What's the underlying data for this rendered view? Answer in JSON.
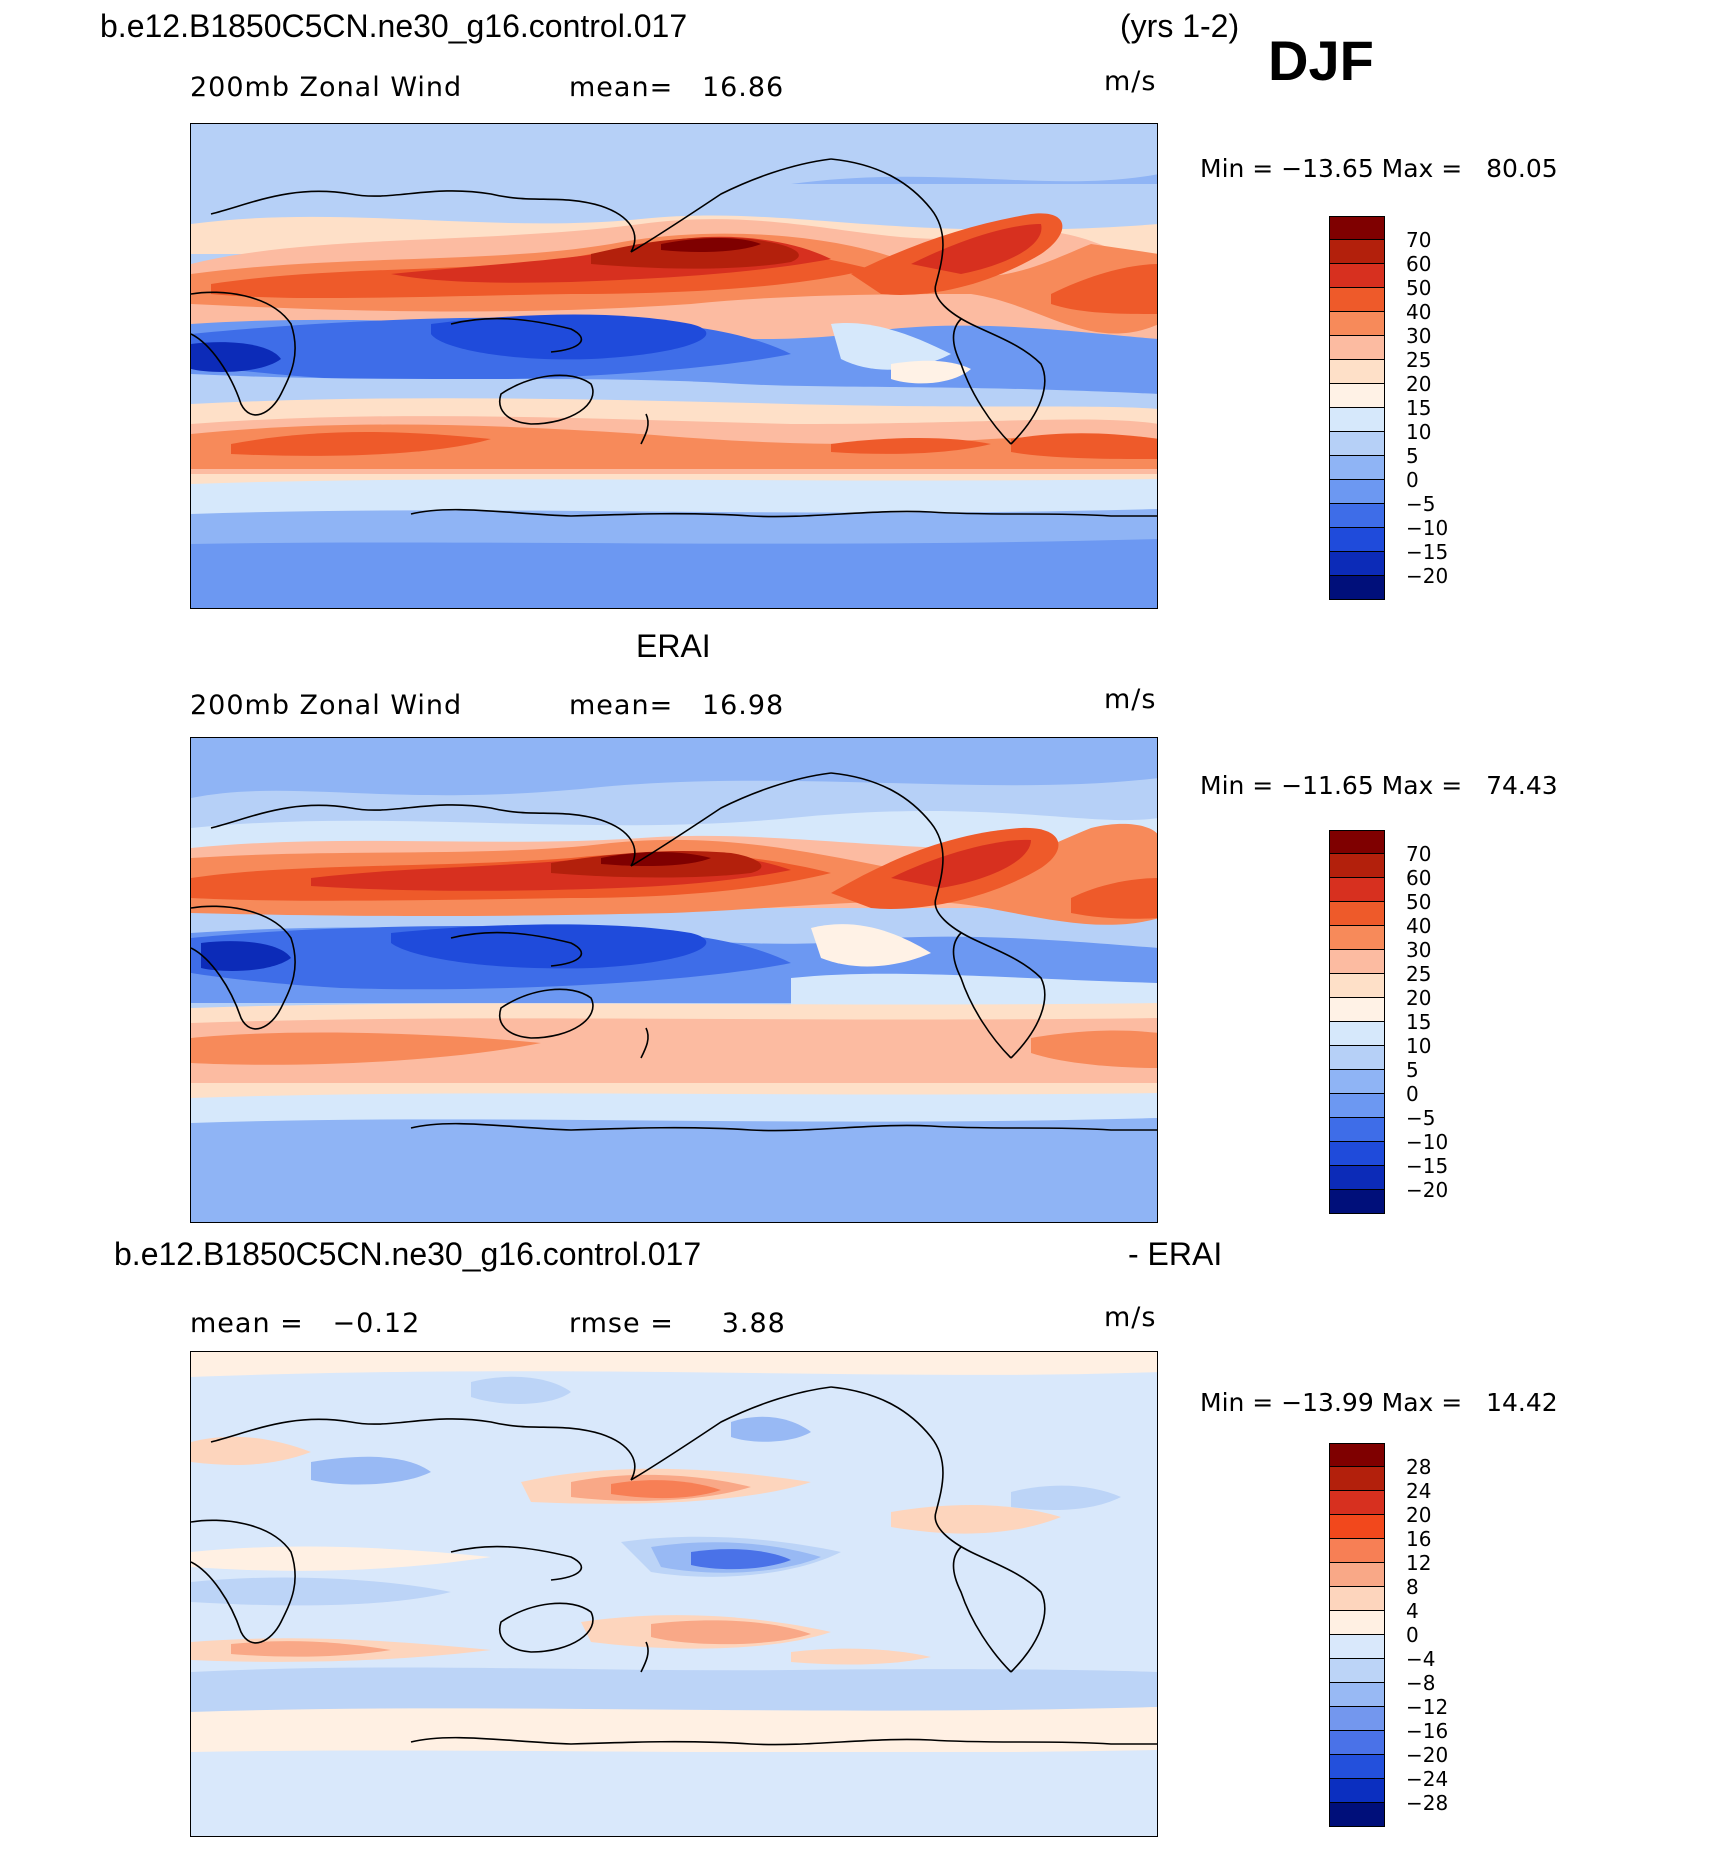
{
  "header": {
    "case_title": "b.e12.B1850C5CN.ne30_g16.control.017",
    "years": "(yrs 1-2)",
    "season": "DJF"
  },
  "panels": [
    {
      "id": "model",
      "title": "",
      "left_label": "200mb Zonal Wind",
      "center_label": "mean=   16.86",
      "units": "m/s",
      "minmax": "Min = −13.65 Max =   80.05",
      "colorbar_labels": [
        "70",
        "60",
        "50",
        "40",
        "30",
        "25",
        "20",
        "15",
        "10",
        "5",
        "0",
        "−5",
        "−10",
        "−15",
        "−20"
      ]
    },
    {
      "id": "obs",
      "title": "ERAI",
      "left_label": "200mb Zonal Wind",
      "center_label": "mean=   16.98",
      "units": "m/s",
      "minmax": "Min = −11.65 Max =   74.43",
      "colorbar_labels": [
        "70",
        "60",
        "50",
        "40",
        "30",
        "25",
        "20",
        "15",
        "10",
        "5",
        "0",
        "−5",
        "−10",
        "−15",
        "−20"
      ]
    },
    {
      "id": "diff",
      "title_left": "b.e12.B1850C5CN.ne30_g16.control.017",
      "title_right": "- ERAI",
      "left_label": "mean =   −0.12",
      "center_label": "rmse =     3.88",
      "units": "m/s",
      "minmax": "Min = −13.99 Max =   14.42",
      "colorbar_labels": [
        "28",
        "24",
        "20",
        "16",
        "12",
        "8",
        "4",
        "0",
        "−4",
        "−8",
        "−12",
        "−16",
        "−20",
        "−24",
        "−28"
      ]
    }
  ],
  "colors": {
    "wind_scale": [
      "#7f0000",
      "#b3200c",
      "#d7301f",
      "#ee5a2a",
      "#f78a5a",
      "#fcbba1",
      "#fee0c8",
      "#fff2e6",
      "#d6e8fb",
      "#b6d0f7",
      "#8fb4f5",
      "#6c98f2",
      "#3e6de8",
      "#1f4bdb",
      "#0c2bb8",
      "#000f7a"
    ],
    "diff_scale": [
      "#7f0000",
      "#b3200c",
      "#d7301f",
      "#f2481c",
      "#f77f55",
      "#f9a887",
      "#fdd5bd",
      "#fff0e3",
      "#d9e8fb",
      "#bcd4f7",
      "#98b9f4",
      "#7397ee",
      "#4a72e8",
      "#2350dc",
      "#0b2fc0",
      "#000f7a"
    ]
  }
}
